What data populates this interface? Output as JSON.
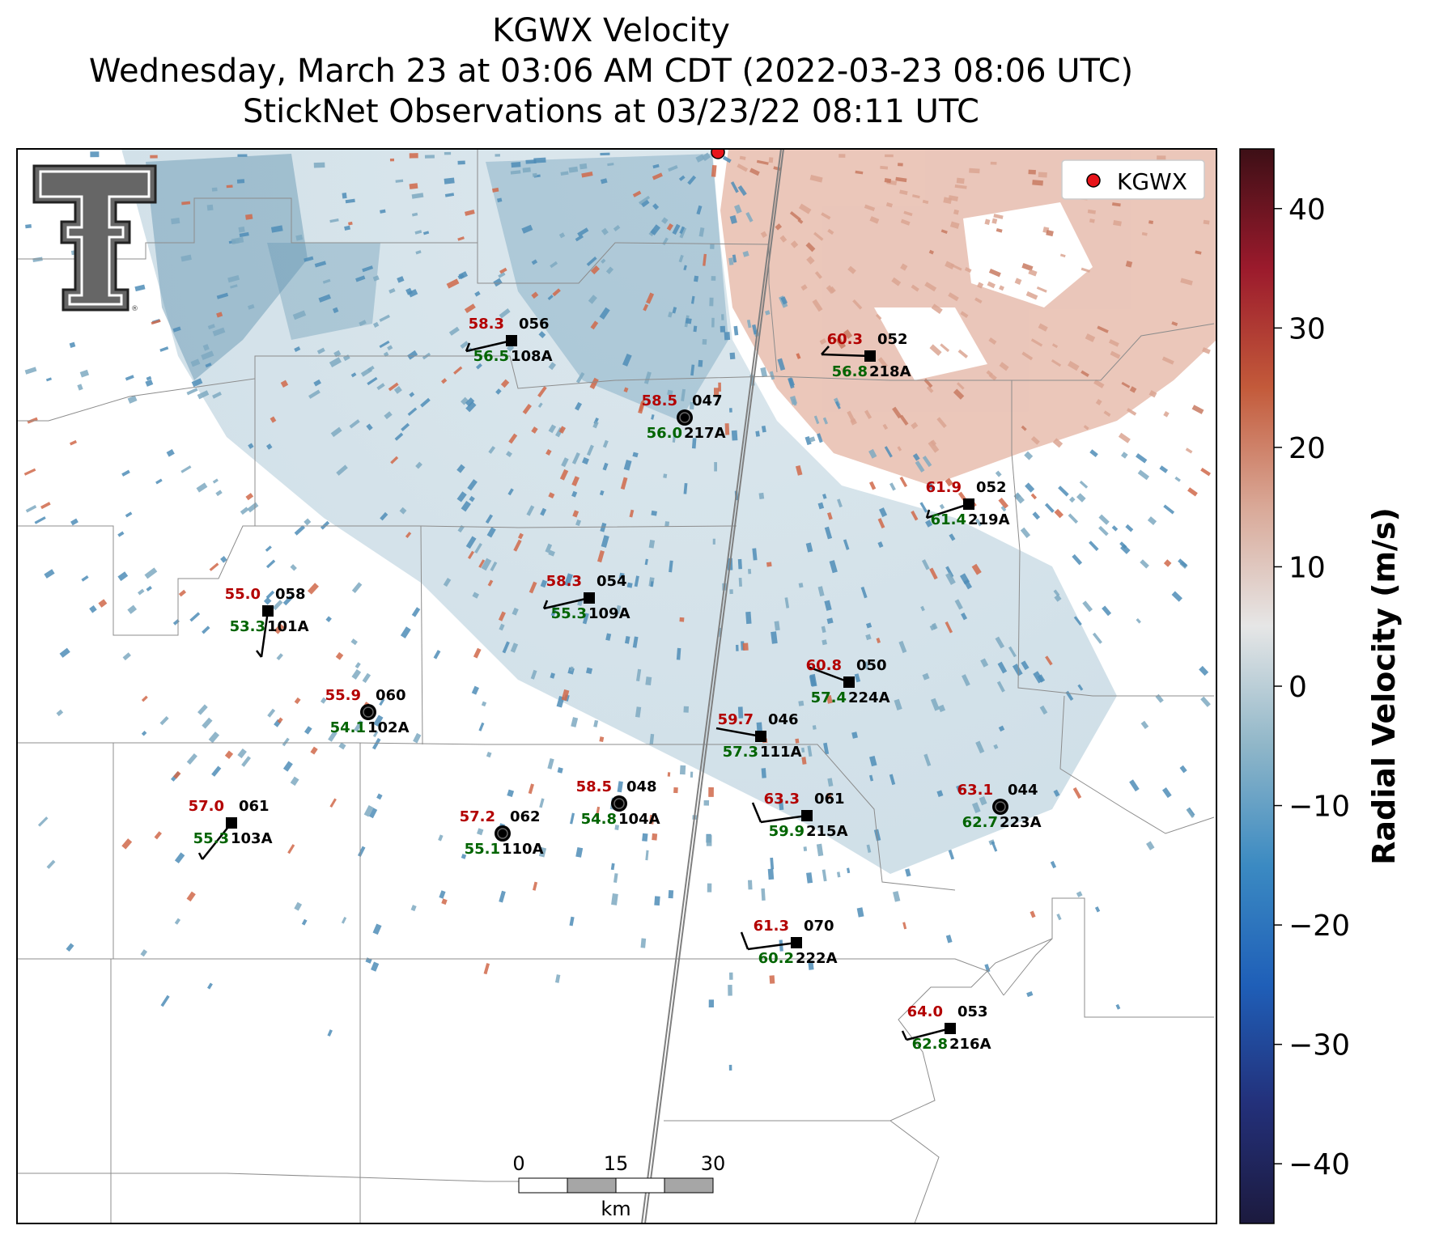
{
  "title": {
    "line1": "KGWX Velocity",
    "line2": "Wednesday, March 23 at 03:06 AM CDT (2022-03-23 08:06 UTC)",
    "line3": "StickNet Observations at 03/23/22 08:11 UTC"
  },
  "radar": {
    "name": "KGWX",
    "marker_color": "#e8141a"
  },
  "legend": {
    "label": "KGWX"
  },
  "colorbar": {
    "label": "Radial Velocity (m/s)",
    "ticks": [
      "40",
      "30",
      "20",
      "10",
      "0",
      "−10",
      "−20",
      "−30",
      "−40"
    ],
    "range": [
      -45,
      45
    ],
    "colors": [
      "#1c1a3e",
      "#23307a",
      "#1f5fb8",
      "#3b8ac2",
      "#8fb6c8",
      "#e6e6e6",
      "#d9a897",
      "#c35a3a",
      "#9b1a2c",
      "#3d0f16"
    ]
  },
  "scalebar": {
    "ticks": [
      "0",
      "15",
      "30"
    ],
    "unit": "km"
  },
  "colors": {
    "temperature": "#b30000",
    "dewpoint": "#006400",
    "label": "#000000"
  },
  "stations": [
    {
      "id": "108A",
      "temp": "58.3",
      "dew": "56.5",
      "dir": "056",
      "marker": "square"
    },
    {
      "id": "218A",
      "temp": "60.3",
      "dew": "56.8",
      "dir": "052",
      "marker": "square"
    },
    {
      "id": "217A",
      "temp": "58.5",
      "dew": "56.0",
      "dir": "047",
      "marker": "circle"
    },
    {
      "id": "219A",
      "temp": "61.9",
      "dew": "61.4",
      "dir": "052",
      "marker": "square"
    },
    {
      "id": "101A",
      "temp": "55.0",
      "dew": "53.3",
      "dir": "058",
      "marker": "square"
    },
    {
      "id": "109A",
      "temp": "58.3",
      "dew": "55.3",
      "dir": "054",
      "marker": "square"
    },
    {
      "id": "224A",
      "temp": "60.8",
      "dew": "57.4",
      "dir": "050",
      "marker": "square"
    },
    {
      "id": "102A",
      "temp": "55.9",
      "dew": "54.1",
      "dir": "060",
      "marker": "circle"
    },
    {
      "id": "111A",
      "temp": "59.7",
      "dew": "57.3",
      "dir": "046",
      "marker": "square"
    },
    {
      "id": "103A",
      "temp": "57.0",
      "dew": "55.3",
      "dir": "061",
      "marker": "square"
    },
    {
      "id": "110A",
      "temp": "57.2",
      "dew": "55.1",
      "dir": "062",
      "marker": "circle"
    },
    {
      "id": "104A",
      "temp": "58.5",
      "dew": "54.8",
      "dir": "048",
      "marker": "circle"
    },
    {
      "id": "215A",
      "temp": "63.3",
      "dew": "59.9",
      "dir": "061",
      "marker": "square"
    },
    {
      "id": "223A",
      "temp": "63.1",
      "dew": "62.7",
      "dir": "044",
      "marker": "circle"
    },
    {
      "id": "222A",
      "temp": "61.3",
      "dew": "60.2",
      "dir": "070",
      "marker": "square"
    },
    {
      "id": "216A",
      "temp": "64.0",
      "dew": "62.8",
      "dir": "053",
      "marker": "square"
    }
  ]
}
